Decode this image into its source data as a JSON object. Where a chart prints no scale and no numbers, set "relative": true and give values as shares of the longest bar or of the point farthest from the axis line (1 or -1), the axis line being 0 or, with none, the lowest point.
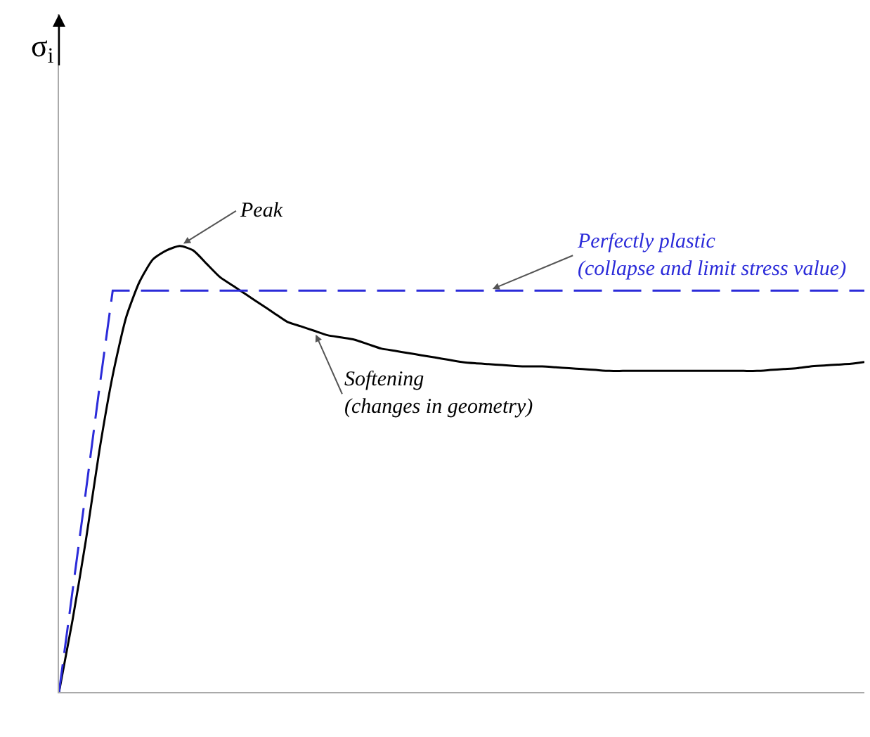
{
  "chart_data": {
    "type": "line",
    "relative": true,
    "categories": [
      null,
      null,
      null,
      null,
      null,
      null,
      null,
      null,
      null,
      null,
      null,
      null,
      null,
      null,
      null,
      null,
      null,
      null,
      null,
      null,
      null,
      null,
      null,
      null,
      null,
      null,
      null,
      null,
      null,
      null,
      null,
      null,
      null,
      null,
      null,
      null,
      null,
      null,
      null,
      null,
      null,
      null,
      null,
      null,
      null,
      null,
      null,
      null,
      null,
      null,
      null,
      null,
      null,
      null,
      null,
      null,
      null,
      null,
      null,
      null,
      null
    ],
    "series": [
      {
        "color": "#000000",
        "line_style": "solid",
        "values": [
          0,
          0.16,
          0.34,
          0.54,
          0.71,
          0.84,
          0.92,
          0.97,
          0.99,
          1.0,
          0.99,
          0.96,
          0.93,
          0.91,
          0.89,
          0.87,
          0.85,
          0.83,
          0.82,
          0.81,
          0.8,
          0.795,
          0.79,
          0.78,
          0.77,
          0.765,
          0.76,
          0.755,
          0.75,
          0.745,
          0.74,
          0.737,
          0.735,
          0.733,
          0.731,
          0.73,
          0.73,
          0.728,
          0.726,
          0.724,
          0.722,
          0.72,
          0.72,
          0.72,
          0.72,
          0.72,
          0.72,
          0.72,
          0.72,
          0.72,
          0.72,
          0.72,
          0.72,
          0.722,
          0.724,
          0.726,
          0.73,
          0.732,
          0.734,
          0.736,
          0.74
        ]
      },
      {
        "color": "#2b2bd9",
        "line_style": "dashed",
        "values": [
          0,
          0.225,
          0.45,
          0.68,
          0.9,
          0.9,
          0.9,
          0.9,
          0.9,
          0.9,
          0.9,
          0.9,
          0.9,
          0.9,
          0.9,
          0.9,
          0.9,
          0.9,
          0.9,
          0.9,
          0.9,
          0.9,
          0.9,
          0.9,
          0.9,
          0.9,
          0.9,
          0.9,
          0.9,
          0.9,
          0.9,
          0.9,
          0.9,
          0.9,
          0.9,
          0.9,
          0.9,
          0.9,
          0.9,
          0.9,
          0.9,
          0.9,
          0.9,
          0.9,
          0.9,
          0.9,
          0.9,
          0.9,
          0.9,
          0.9,
          0.9,
          0.9,
          0.9,
          0.9,
          0.9,
          0.9,
          0.9,
          0.9,
          0.9,
          0.9,
          0.9
        ]
      }
    ],
    "annotations": [
      "Peak",
      "Softening\n(changes in geometry)",
      "Perfectly plastic\n(collapse and limit stress value)",
      "σ$_{i}$"
    ]
  }
}
